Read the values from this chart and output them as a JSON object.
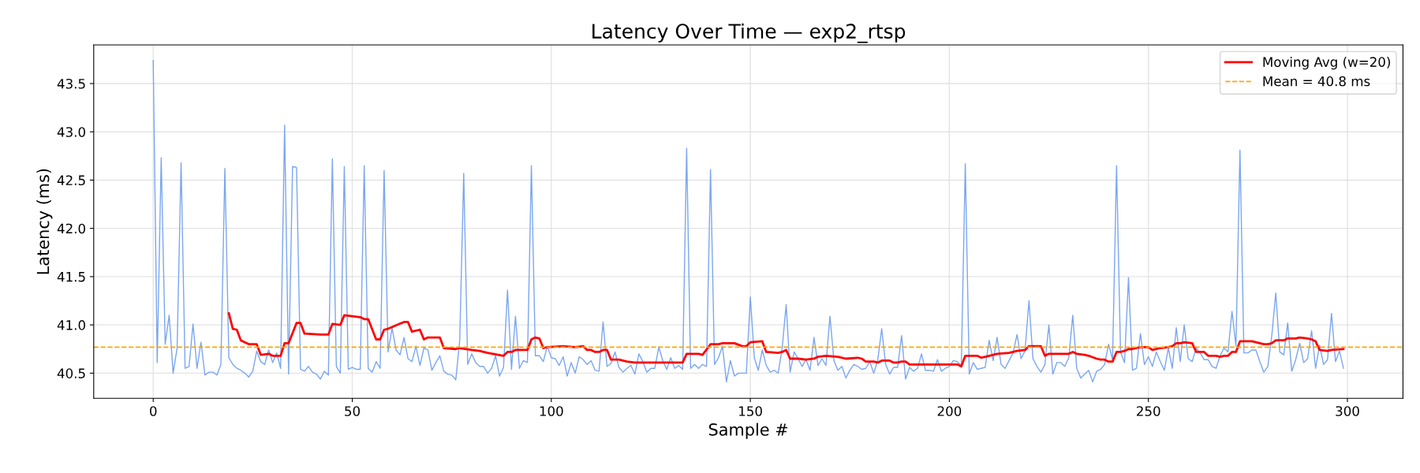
{
  "chart_data": {
    "type": "line",
    "title": "Latency Over Time — exp2_rtsp",
    "xlabel": "Sample #",
    "ylabel": "Latency (ms)",
    "xlim": [
      -14.95,
      313.95
    ],
    "xticks": [
      0,
      50,
      100,
      150,
      200,
      250,
      300
    ],
    "ylim": [
      40.24,
      43.9
    ],
    "yticks": [
      40.5,
      {
        "value": 41.0,
        "label": "41.0"
      },
      41.5,
      {
        "value": 42.0,
        "label": "42.0"
      },
      42.5,
      {
        "value": 43.0,
        "label": "43.0"
      },
      43.5
    ],
    "grid": true,
    "legend": "top right",
    "line_style": "solid",
    "marker": "none",
    "series": [
      {
        "color": "#7aa6f0",
        "x": [
          0,
          1,
          2,
          3,
          4,
          5,
          6,
          7,
          8,
          9,
          10,
          11,
          12,
          13,
          14,
          15,
          16,
          17,
          18,
          19,
          20,
          21,
          22,
          23,
          24,
          25,
          26,
          27,
          28,
          29,
          30,
          31,
          32,
          33,
          34,
          35,
          36,
          37,
          38,
          39,
          40,
          41,
          42,
          43,
          44,
          45,
          46,
          47,
          48,
          49,
          50,
          51,
          52,
          53,
          54,
          55,
          56,
          57,
          58,
          59,
          60,
          61,
          62,
          63,
          64,
          65,
          66,
          67,
          68,
          69,
          70,
          71,
          72,
          73,
          74,
          75,
          76,
          77,
          78,
          79,
          80,
          81,
          82,
          83,
          84,
          85,
          86,
          87,
          88,
          89,
          90,
          91,
          92,
          93,
          94,
          95,
          96,
          97,
          98,
          99,
          100,
          101,
          102,
          103,
          104,
          105,
          106,
          107,
          108,
          109,
          110,
          111,
          112,
          113,
          114,
          115,
          116,
          117,
          118,
          119,
          120,
          121,
          122,
          123,
          124,
          125,
          126,
          127,
          128,
          129,
          130,
          131,
          132,
          133,
          134,
          135,
          136,
          137,
          138,
          139,
          140,
          141,
          142,
          143,
          144,
          145,
          146,
          147,
          148,
          149,
          150,
          151,
          152,
          153,
          154,
          155,
          156,
          157,
          158,
          159,
          160,
          161,
          162,
          163,
          164,
          165,
          166,
          167,
          168,
          169,
          170,
          171,
          172,
          173,
          174,
          175,
          176,
          177,
          178,
          179,
          180,
          181,
          182,
          183,
          184,
          185,
          186,
          187,
          188,
          189,
          190,
          191,
          192,
          193,
          194,
          195,
          196,
          197,
          198,
          199,
          200,
          201,
          202,
          203,
          204,
          205,
          206,
          207,
          208,
          209,
          210,
          211,
          212,
          213,
          214,
          215,
          216,
          217,
          218,
          219,
          220,
          221,
          222,
          223,
          224,
          225,
          226,
          227,
          228,
          229,
          230,
          231,
          232,
          233,
          234,
          235,
          236,
          237,
          238,
          239,
          240,
          241,
          242,
          243,
          244,
          245,
          246,
          247,
          248,
          249,
          250,
          251,
          252,
          253,
          254,
          255,
          256,
          257,
          258,
          259,
          260,
          261,
          262,
          263,
          264,
          265,
          266,
          267,
          268,
          269,
          270,
          271,
          272,
          273,
          274,
          275,
          276,
          277,
          278,
          279,
          280,
          281,
          282,
          283,
          284,
          285,
          286,
          287,
          288,
          289,
          290,
          291,
          292,
          293,
          294,
          295,
          296,
          297,
          298,
          299
        ],
        "values": [
          43.74,
          40.61,
          42.73,
          40.8,
          41.1,
          40.5,
          40.76,
          42.68,
          40.55,
          40.57,
          41.01,
          40.55,
          40.82,
          40.48,
          40.51,
          40.51,
          40.48,
          40.59,
          42.62,
          40.66,
          40.59,
          40.55,
          40.53,
          40.5,
          40.46,
          40.52,
          40.73,
          40.62,
          40.59,
          40.74,
          40.61,
          40.71,
          40.55,
          43.07,
          40.49,
          42.64,
          42.63,
          40.54,
          40.52,
          40.57,
          40.51,
          40.49,
          40.44,
          40.52,
          40.48,
          42.72,
          40.57,
          40.5,
          42.64,
          40.54,
          40.56,
          40.54,
          40.54,
          42.65,
          40.55,
          40.51,
          40.62,
          40.55,
          42.6,
          40.72,
          40.97,
          40.74,
          40.69,
          40.87,
          40.65,
          40.62,
          40.78,
          40.58,
          40.76,
          40.74,
          40.53,
          40.61,
          40.68,
          40.52,
          40.49,
          40.48,
          40.43,
          40.84,
          42.57,
          40.59,
          40.7,
          40.61,
          40.57,
          40.57,
          40.5,
          40.55,
          40.68,
          40.47,
          40.56,
          41.36,
          40.54,
          41.09,
          40.55,
          40.63,
          40.61,
          42.65,
          40.68,
          40.68,
          40.62,
          40.78,
          40.66,
          40.65,
          40.58,
          40.67,
          40.47,
          40.61,
          40.5,
          40.67,
          40.64,
          40.59,
          40.63,
          40.53,
          40.52,
          41.03,
          40.57,
          40.6,
          40.72,
          40.56,
          40.51,
          40.55,
          40.58,
          40.49,
          40.7,
          40.62,
          40.51,
          40.55,
          40.55,
          40.77,
          40.63,
          40.54,
          40.66,
          40.55,
          40.58,
          40.54,
          42.83,
          40.55,
          40.59,
          40.55,
          40.59,
          40.57,
          42.61,
          40.59,
          40.66,
          40.78,
          40.41,
          40.63,
          40.47,
          40.5,
          40.5,
          40.5,
          41.29,
          40.66,
          40.53,
          40.74,
          40.58,
          40.51,
          40.53,
          40.5,
          40.76,
          41.21,
          40.51,
          40.72,
          40.65,
          40.57,
          40.64,
          40.53,
          40.87,
          40.58,
          40.65,
          40.58,
          41.09,
          40.63,
          40.53,
          40.57,
          40.45,
          40.53,
          40.59,
          40.57,
          40.54,
          40.55,
          40.62,
          40.5,
          40.63,
          40.96,
          40.59,
          40.49,
          40.56,
          40.56,
          40.89,
          40.44,
          40.56,
          40.52,
          40.55,
          40.7,
          40.53,
          40.53,
          40.52,
          40.64,
          40.52,
          40.55,
          40.57,
          40.63,
          40.62,
          40.58,
          42.67,
          40.49,
          40.61,
          40.54,
          40.55,
          40.56,
          40.84,
          40.63,
          40.87,
          40.59,
          40.55,
          40.63,
          40.71,
          40.9,
          40.65,
          40.73,
          41.25,
          40.65,
          40.57,
          40.51,
          40.59,
          41.0,
          40.49,
          40.61,
          40.61,
          40.57,
          40.66,
          41.1,
          40.55,
          40.45,
          40.49,
          40.53,
          40.41,
          40.52,
          40.54,
          40.59,
          40.8,
          40.64,
          42.65,
          40.72,
          40.61,
          41.49,
          40.53,
          40.55,
          40.91,
          40.59,
          40.67,
          40.57,
          40.72,
          40.62,
          40.53,
          40.76,
          40.55,
          40.97,
          40.62,
          41.0,
          40.65,
          40.62,
          40.76,
          40.71,
          40.64,
          40.64,
          40.57,
          40.55,
          40.68,
          40.76,
          40.72,
          41.14,
          40.78,
          42.81,
          40.71,
          40.71,
          40.74,
          40.74,
          40.62,
          40.51,
          40.57,
          40.89,
          41.33,
          40.72,
          40.69,
          41.02,
          40.52,
          40.64,
          40.81,
          40.61,
          40.65,
          40.94,
          40.55,
          40.79,
          40.59,
          40.64,
          41.12,
          40.62,
          40.73,
          40.55
        ]
      },
      {
        "name": "Moving Avg (w=20)",
        "color": "#ff0000",
        "x": [
          19,
          20,
          21,
          22,
          23,
          24,
          26,
          27,
          29,
          30,
          32,
          33,
          34,
          36,
          37,
          38,
          42,
          44,
          45,
          47,
          48,
          52,
          53,
          54,
          56,
          57,
          58,
          59,
          63,
          64,
          65,
          67,
          68,
          69,
          72,
          73,
          76,
          77,
          80,
          82,
          84,
          88,
          89,
          90,
          91,
          93,
          94,
          95,
          96,
          97,
          98,
          99,
          103,
          106,
          108,
          109,
          110,
          111,
          112,
          113,
          114,
          115,
          117,
          119,
          121,
          126,
          133,
          134,
          137,
          138,
          140,
          141,
          142,
          143,
          146,
          148,
          149,
          150,
          153,
          154,
          157,
          158,
          159,
          160,
          162,
          164,
          166,
          167,
          169,
          172,
          174,
          177,
          178,
          179,
          181,
          182,
          183,
          185,
          186,
          187,
          188,
          189,
          190,
          192,
          193,
          202,
          203,
          204,
          207,
          208,
          209,
          210,
          212,
          215,
          217,
          219,
          220,
          223,
          224,
          225,
          229,
          230,
          231,
          232,
          234,
          235,
          237,
          238,
          239,
          240,
          241,
          242,
          243,
          244,
          245,
          246,
          247,
          248,
          250,
          251,
          253,
          255,
          256,
          257,
          258,
          259,
          261,
          262,
          264,
          265,
          267,
          268,
          269,
          270,
          271,
          272,
          273,
          275,
          276,
          278,
          279,
          280,
          281,
          282,
          284,
          285,
          287,
          288,
          290,
          291,
          292,
          293,
          295,
          296,
          299
        ],
        "values": [
          41.12,
          40.96,
          40.95,
          40.84,
          40.82,
          40.8,
          40.8,
          40.69,
          40.7,
          40.68,
          40.68,
          40.81,
          40.81,
          41.02,
          41.02,
          40.91,
          40.9,
          40.9,
          41.01,
          41.0,
          41.1,
          41.08,
          41.06,
          41.06,
          40.85,
          40.85,
          40.95,
          40.96,
          41.03,
          41.03,
          40.93,
          40.95,
          40.85,
          40.87,
          40.87,
          40.76,
          40.75,
          40.76,
          40.74,
          40.73,
          40.71,
          40.68,
          40.72,
          40.72,
          40.74,
          40.74,
          40.74,
          40.85,
          40.87,
          40.86,
          40.76,
          40.77,
          40.78,
          40.77,
          40.78,
          40.74,
          40.74,
          40.72,
          40.72,
          40.74,
          40.74,
          40.64,
          40.64,
          40.62,
          40.61,
          40.61,
          40.61,
          40.7,
          40.7,
          40.69,
          40.8,
          40.8,
          40.8,
          40.81,
          40.81,
          40.78,
          40.78,
          40.82,
          40.83,
          40.72,
          40.71,
          40.72,
          40.74,
          40.65,
          40.65,
          40.64,
          40.65,
          40.67,
          40.68,
          40.67,
          40.65,
          40.66,
          40.65,
          40.62,
          40.62,
          40.61,
          40.63,
          40.63,
          40.61,
          40.61,
          40.62,
          40.62,
          40.59,
          40.59,
          40.59,
          40.59,
          40.57,
          40.68,
          40.68,
          40.66,
          40.67,
          40.68,
          40.7,
          40.71,
          40.73,
          40.74,
          40.78,
          40.78,
          40.68,
          40.7,
          40.7,
          40.7,
          40.72,
          40.7,
          40.69,
          40.68,
          40.65,
          40.64,
          40.64,
          40.62,
          40.62,
          40.72,
          40.72,
          40.73,
          40.75,
          40.75,
          40.76,
          40.77,
          40.77,
          40.74,
          40.76,
          40.77,
          40.78,
          40.81,
          40.81,
          40.82,
          40.81,
          40.72,
          40.72,
          40.68,
          40.68,
          40.67,
          40.68,
          40.68,
          40.72,
          40.72,
          40.83,
          40.83,
          40.83,
          40.81,
          40.8,
          40.8,
          40.81,
          40.84,
          40.84,
          40.86,
          40.86,
          40.87,
          40.86,
          40.85,
          40.83,
          40.74,
          40.73,
          40.74,
          40.75
        ]
      }
    ],
    "ref_lines": [
      {
        "axis": "y",
        "value": 40.77,
        "label": "Mean = 40.8 ms",
        "color": "#ffa500",
        "line_style": "dashed"
      }
    ]
  }
}
